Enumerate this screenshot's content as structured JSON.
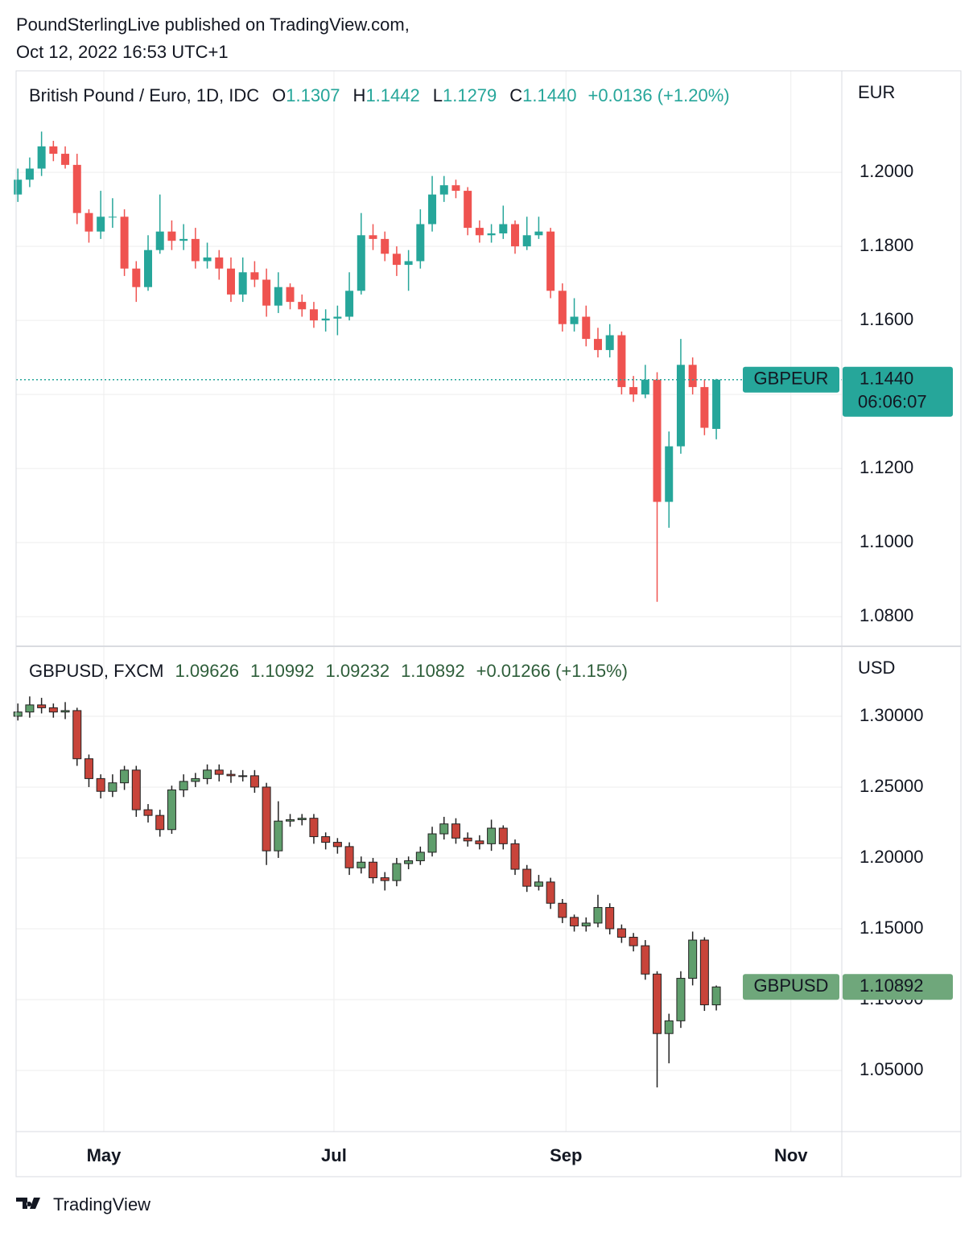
{
  "header": {
    "line1": "PoundSterlingLive published on TradingView.com,",
    "line2": "Oct 12, 2022 16:53 UTC+1"
  },
  "footer": {
    "brand": "TradingView"
  },
  "chart_data": [
    {
      "type": "candlestick",
      "axis_unit": "EUR",
      "grid": true,
      "legend": {
        "name": "British Pound / Euro, 1D, IDC",
        "items": [
          {
            "key": "O",
            "value": "1.1307"
          },
          {
            "key": "H",
            "value": "1.1442"
          },
          {
            "key": "L",
            "value": "1.1279"
          },
          {
            "key": "C",
            "value": "1.1440"
          }
        ],
        "change": "+0.0136 (+1.20%)",
        "color": "#26a69a"
      },
      "last_price": {
        "symbol": "GBPEUR",
        "value": 1.144,
        "label": "1.1440",
        "countdown": "06:06:07",
        "color": "#26a69a"
      },
      "up_color": "#26a69a",
      "down_color": "#ef5350",
      "xlim": [
        -0.15,
        69.6
      ],
      "ylim": [
        1.072,
        1.2274
      ],
      "yticks": [
        {
          "value": 1.08,
          "label": "1.0800"
        },
        {
          "value": 1.1,
          "label": "1.1000"
        },
        {
          "value": 1.12,
          "label": "1.1200"
        },
        {
          "value": 1.14,
          "label": "1.1400"
        },
        {
          "value": 1.16,
          "label": "1.1600"
        },
        {
          "value": 1.18,
          "label": "1.1800"
        },
        {
          "value": 1.2,
          "label": "1.2000"
        }
      ],
      "open": [
        1.194,
        1.198,
        1.201,
        1.207,
        1.205,
        1.202,
        1.189,
        1.184,
        1.188,
        1.188,
        1.174,
        1.169,
        1.179,
        1.184,
        1.1815,
        1.182,
        1.176,
        1.177,
        1.174,
        1.167,
        1.173,
        1.171,
        1.164,
        1.169,
        1.165,
        1.163,
        1.16,
        1.1605,
        1.161,
        1.168,
        1.183,
        1.182,
        1.178,
        1.175,
        1.176,
        1.186,
        1.194,
        1.1965,
        1.195,
        1.185,
        1.183,
        1.1835,
        1.186,
        1.18,
        1.183,
        1.184,
        1.168,
        1.159,
        1.161,
        1.155,
        1.152,
        1.156,
        1.142,
        1.14,
        1.144,
        1.111,
        1.126,
        1.148,
        1.142,
        1.1307
      ],
      "high": [
        1.201,
        1.204,
        1.211,
        1.2085,
        1.207,
        1.205,
        1.19,
        1.195,
        1.193,
        1.19,
        1.176,
        1.183,
        1.194,
        1.187,
        1.186,
        1.185,
        1.181,
        1.179,
        1.177,
        1.177,
        1.176,
        1.174,
        1.173,
        1.17,
        1.167,
        1.165,
        1.163,
        1.164,
        1.173,
        1.189,
        1.186,
        1.184,
        1.18,
        1.179,
        1.19,
        1.199,
        1.199,
        1.198,
        1.196,
        1.187,
        1.186,
        1.191,
        1.187,
        1.188,
        1.188,
        1.185,
        1.17,
        1.166,
        1.164,
        1.158,
        1.159,
        1.157,
        1.145,
        1.148,
        1.146,
        1.13,
        1.155,
        1.15,
        1.144,
        1.1442
      ],
      "low": [
        1.192,
        1.196,
        1.199,
        1.203,
        1.201,
        1.186,
        1.181,
        1.182,
        1.185,
        1.172,
        1.165,
        1.168,
        1.178,
        1.179,
        1.179,
        1.174,
        1.174,
        1.171,
        1.165,
        1.165,
        1.169,
        1.161,
        1.162,
        1.163,
        1.161,
        1.158,
        1.157,
        1.156,
        1.16,
        1.167,
        1.179,
        1.176,
        1.172,
        1.168,
        1.174,
        1.184,
        1.192,
        1.193,
        1.183,
        1.181,
        1.181,
        1.182,
        1.178,
        1.179,
        1.182,
        1.166,
        1.157,
        1.157,
        1.153,
        1.15,
        1.15,
        1.14,
        1.138,
        1.139,
        1.084,
        1.104,
        1.124,
        1.14,
        1.129,
        1.1279
      ],
      "close": [
        1.198,
        1.201,
        1.207,
        1.205,
        1.202,
        1.189,
        1.184,
        1.188,
        1.188,
        1.174,
        1.169,
        1.179,
        1.184,
        1.1815,
        1.182,
        1.176,
        1.177,
        1.174,
        1.167,
        1.173,
        1.171,
        1.164,
        1.169,
        1.165,
        1.163,
        1.16,
        1.1605,
        1.161,
        1.168,
        1.183,
        1.182,
        1.178,
        1.175,
        1.176,
        1.186,
        1.194,
        1.1965,
        1.195,
        1.185,
        1.183,
        1.1835,
        1.186,
        1.18,
        1.183,
        1.184,
        1.168,
        1.159,
        1.161,
        1.155,
        1.152,
        1.156,
        1.142,
        1.14,
        1.144,
        1.111,
        1.126,
        1.148,
        1.142,
        1.131,
        1.144
      ]
    },
    {
      "type": "candlestick",
      "axis_unit": "USD",
      "grid": true,
      "legend": {
        "name": "GBPUSD, FXCM",
        "items": [
          {
            "key": "",
            "value": "1.09626"
          },
          {
            "key": "",
            "value": "1.10992"
          },
          {
            "key": "",
            "value": "1.09232"
          },
          {
            "key": "",
            "value": "1.10892"
          }
        ],
        "change": "+0.01266 (+1.15%)",
        "color": "#2e5e3a"
      },
      "last_price": {
        "symbol": "GBPUSD",
        "value": 1.10892,
        "label": "1.10892",
        "color": "#6fa77b"
      },
      "up_color": "#5f9e6c",
      "down_color": "#c8443a",
      "border_color": "#222222",
      "xlim": [
        -0.15,
        69.6
      ],
      "xticks": [
        {
          "value": 7.26,
          "label": "May"
        },
        {
          "value": 26.7,
          "label": "Jul"
        },
        {
          "value": 46.3,
          "label": "Sep"
        },
        {
          "value": 65.3,
          "label": "Nov"
        }
      ],
      "ylim": [
        1.0068,
        1.3494
      ],
      "yticks": [
        {
          "value": 1.05,
          "label": "1.05000"
        },
        {
          "value": 1.1,
          "label": "1.10000"
        },
        {
          "value": 1.15,
          "label": "1.15000"
        },
        {
          "value": 1.2,
          "label": "1.20000"
        },
        {
          "value": 1.25,
          "label": "1.25000"
        },
        {
          "value": 1.3,
          "label": "1.30000"
        }
      ],
      "open": [
        1.3,
        1.303,
        1.308,
        1.306,
        1.303,
        1.304,
        1.27,
        1.256,
        1.247,
        1.253,
        1.262,
        1.234,
        1.23,
        1.22,
        1.248,
        1.254,
        1.256,
        1.262,
        1.259,
        1.258,
        1.258,
        1.25,
        1.205,
        1.226,
        1.227,
        1.228,
        1.215,
        1.211,
        1.208,
        1.193,
        1.197,
        1.186,
        1.184,
        1.196,
        1.198,
        1.204,
        1.217,
        1.224,
        1.214,
        1.212,
        1.21,
        1.221,
        1.21,
        1.192,
        1.18,
        1.183,
        1.168,
        1.158,
        1.152,
        1.154,
        1.165,
        1.15,
        1.144,
        1.138,
        1.118,
        1.076,
        1.085,
        1.115,
        1.142,
        1.09626
      ],
      "high": [
        1.309,
        1.314,
        1.313,
        1.309,
        1.31,
        1.306,
        1.273,
        1.259,
        1.259,
        1.265,
        1.265,
        1.238,
        1.234,
        1.251,
        1.259,
        1.26,
        1.266,
        1.266,
        1.262,
        1.262,
        1.262,
        1.253,
        1.24,
        1.231,
        1.231,
        1.231,
        1.218,
        1.214,
        1.211,
        1.201,
        1.2,
        1.19,
        1.2,
        1.201,
        1.208,
        1.222,
        1.229,
        1.228,
        1.218,
        1.216,
        1.227,
        1.223,
        1.213,
        1.195,
        1.188,
        1.186,
        1.171,
        1.16,
        1.158,
        1.174,
        1.168,
        1.153,
        1.147,
        1.142,
        1.12,
        1.09,
        1.12,
        1.148,
        1.144,
        1.10992
      ],
      "low": [
        1.297,
        1.299,
        1.302,
        1.299,
        1.298,
        1.265,
        1.25,
        1.242,
        1.243,
        1.248,
        1.229,
        1.225,
        1.215,
        1.217,
        1.243,
        1.25,
        1.252,
        1.254,
        1.253,
        1.254,
        1.246,
        1.195,
        1.2,
        1.222,
        1.223,
        1.21,
        1.206,
        1.203,
        1.188,
        1.189,
        1.182,
        1.177,
        1.18,
        1.192,
        1.195,
        1.201,
        1.213,
        1.21,
        1.208,
        1.206,
        1.205,
        1.206,
        1.188,
        1.176,
        1.177,
        1.164,
        1.154,
        1.148,
        1.148,
        1.151,
        1.146,
        1.14,
        1.134,
        1.114,
        1.038,
        1.055,
        1.08,
        1.11,
        1.092,
        1.09232
      ],
      "close": [
        1.303,
        1.308,
        1.306,
        1.303,
        1.304,
        1.27,
        1.256,
        1.247,
        1.253,
        1.262,
        1.234,
        1.23,
        1.22,
        1.248,
        1.254,
        1.256,
        1.262,
        1.259,
        1.258,
        1.258,
        1.25,
        1.205,
        1.226,
        1.227,
        1.228,
        1.215,
        1.211,
        1.208,
        1.193,
        1.197,
        1.186,
        1.184,
        1.196,
        1.198,
        1.204,
        1.217,
        1.224,
        1.214,
        1.212,
        1.21,
        1.221,
        1.21,
        1.192,
        1.18,
        1.183,
        1.168,
        1.158,
        1.152,
        1.154,
        1.165,
        1.15,
        1.144,
        1.138,
        1.118,
        1.076,
        1.085,
        1.115,
        1.142,
        1.0963,
        1.10892
      ]
    }
  ]
}
